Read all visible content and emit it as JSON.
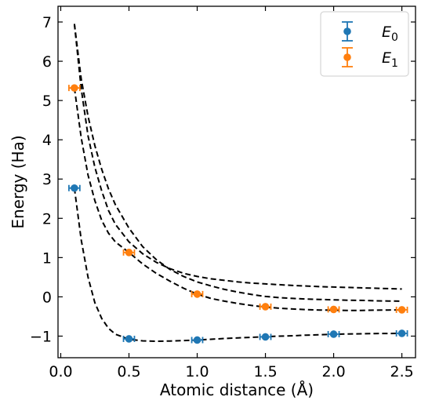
{
  "chart_data": {
    "type": "scatter",
    "xlabel": "Atomic distance (Å)",
    "ylabel": "Energy (Ha)",
    "xlim": [
      -0.02,
      2.6
    ],
    "ylim": [
      -1.55,
      7.4
    ],
    "xticks": [
      0.0,
      0.5,
      1.0,
      1.5,
      2.0,
      2.5
    ],
    "xtick_labels": [
      "0.0",
      "0.5",
      "1.0",
      "1.5",
      "2.0",
      "2.5"
    ],
    "yticks": [
      -1,
      0,
      1,
      2,
      3,
      4,
      5,
      6,
      7
    ],
    "ytick_labels": [
      "−1",
      "0",
      "1",
      "2",
      "3",
      "4",
      "5",
      "6",
      "7"
    ],
    "legend_position": "top-right",
    "series": [
      {
        "name": "E",
        "subscript": "0",
        "color": "#1f77b4",
        "x": [
          0.1,
          0.5,
          1.0,
          1.5,
          2.0,
          2.5
        ],
        "y": [
          2.77,
          -1.07,
          -1.1,
          -1.02,
          -0.95,
          -0.93
        ],
        "xerr": [
          0.04,
          0.04,
          0.04,
          0.04,
          0.04,
          0.04
        ]
      },
      {
        "name": "E",
        "subscript": "1",
        "color": "#ff7f0e",
        "x": [
          0.1,
          0.5,
          1.0,
          1.5,
          2.0,
          2.5
        ],
        "y": [
          5.32,
          1.13,
          0.07,
          -0.25,
          -0.32,
          -0.33
        ],
        "xerr": [
          0.04,
          0.04,
          0.04,
          0.04,
          0.04,
          0.04
        ]
      }
    ],
    "dashed_curves": [
      {
        "x": [
          0.1,
          0.15,
          0.2,
          0.25,
          0.3,
          0.35,
          0.4,
          0.5,
          0.6,
          0.7,
          0.8,
          0.9,
          1.0,
          1.1,
          1.2,
          1.3,
          1.4,
          1.5,
          1.6,
          1.7,
          1.8,
          1.9,
          2.0,
          2.1,
          2.2,
          2.3,
          2.4,
          2.5
        ],
        "y": [
          2.77,
          1.45,
          0.5,
          -0.15,
          -0.55,
          -0.8,
          -0.95,
          -1.08,
          -1.12,
          -1.13,
          -1.125,
          -1.115,
          -1.1,
          -1.08,
          -1.06,
          -1.045,
          -1.03,
          -1.015,
          -1.0,
          -0.99,
          -0.975,
          -0.965,
          -0.955,
          -0.945,
          -0.94,
          -0.935,
          -0.932,
          -0.93
        ]
      },
      {
        "x": [
          0.1,
          0.15,
          0.2,
          0.25,
          0.3,
          0.35,
          0.4,
          0.5,
          0.6,
          0.7,
          0.8,
          0.9,
          1.0,
          1.1,
          1.2,
          1.3,
          1.4,
          1.5,
          1.6,
          1.7,
          1.8,
          1.9,
          2.0,
          2.1,
          2.2,
          2.3,
          2.4,
          2.5
        ],
        "y": [
          5.32,
          4.05,
          3.1,
          2.45,
          1.95,
          1.62,
          1.4,
          1.13,
          0.84,
          0.6,
          0.4,
          0.22,
          0.07,
          -0.04,
          -0.11,
          -0.17,
          -0.22,
          -0.26,
          -0.29,
          -0.31,
          -0.325,
          -0.335,
          -0.34,
          -0.345,
          -0.345,
          -0.34,
          -0.335,
          -0.33
        ]
      },
      {
        "x": [
          0.1,
          0.15,
          0.2,
          0.25,
          0.3,
          0.35,
          0.4,
          0.5,
          0.6,
          0.7,
          0.8,
          0.9,
          1.0,
          1.1,
          1.2,
          1.3,
          1.4,
          1.5,
          1.6,
          1.7,
          1.8,
          1.9,
          2.0,
          2.1,
          2.2,
          2.3,
          2.4,
          2.5
        ],
        "y": [
          6.95,
          5.55,
          4.6,
          3.85,
          3.25,
          2.75,
          2.35,
          1.75,
          1.28,
          0.95,
          0.7,
          0.52,
          0.38,
          0.28,
          0.19,
          0.12,
          0.06,
          0.01,
          -0.02,
          -0.04,
          -0.055,
          -0.065,
          -0.075,
          -0.085,
          -0.09,
          -0.1,
          -0.105,
          -0.11
        ]
      },
      {
        "x": [
          0.1,
          0.15,
          0.2,
          0.25,
          0.3,
          0.35,
          0.4,
          0.5,
          0.6,
          0.7,
          0.8,
          0.9,
          1.0,
          1.1,
          1.2,
          1.3,
          1.4,
          1.5,
          1.6,
          1.7,
          1.8,
          1.9,
          2.0,
          2.1,
          2.2,
          2.3,
          2.4,
          2.5
        ],
        "y": [
          6.95,
          5.3,
          4.1,
          3.3,
          2.7,
          2.2,
          1.85,
          1.4,
          1.1,
          0.88,
          0.72,
          0.6,
          0.52,
          0.46,
          0.42,
          0.38,
          0.35,
          0.33,
          0.31,
          0.29,
          0.275,
          0.26,
          0.25,
          0.24,
          0.23,
          0.22,
          0.21,
          0.2
        ]
      }
    ]
  }
}
